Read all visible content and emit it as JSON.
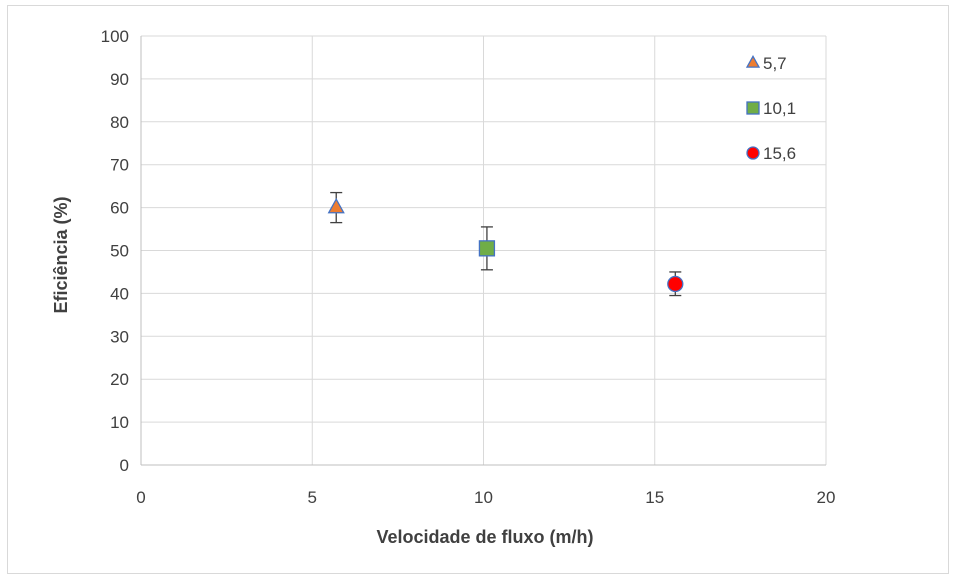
{
  "chart_data": {
    "type": "scatter",
    "title": "",
    "xlabel": "Velocidade de fluxo (m/h)",
    "ylabel": "Eficiência (%)",
    "xlim": [
      0,
      20
    ],
    "ylim": [
      0,
      100
    ],
    "x_ticks": [
      0,
      5,
      10,
      15,
      20
    ],
    "y_ticks": [
      0,
      10,
      20,
      30,
      40,
      50,
      60,
      70,
      80,
      90,
      100
    ],
    "grid": true,
    "legend_position": "top-right",
    "series": [
      {
        "name": "5,7",
        "x": 5.7,
        "y": 60.0,
        "err_low": 56.5,
        "err_high": 63.5,
        "marker": "triangle",
        "color": "#ed7d31",
        "edge": "#4472c4"
      },
      {
        "name": "10,1",
        "x": 10.1,
        "y": 50.5,
        "err_low": 45.5,
        "err_high": 55.5,
        "marker": "square",
        "color": "#70ad47",
        "edge": "#4472c4"
      },
      {
        "name": "15,6",
        "x": 15.6,
        "y": 42.2,
        "err_low": 39.5,
        "err_high": 45.0,
        "marker": "circle",
        "color": "#ff0000",
        "edge": "#4472c4"
      }
    ]
  }
}
